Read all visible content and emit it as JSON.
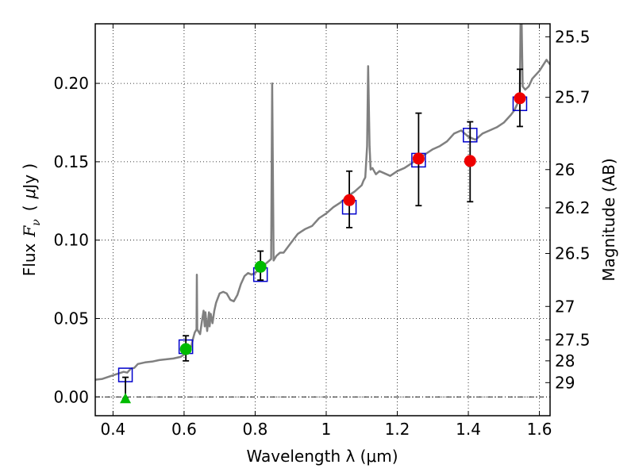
{
  "chart_data": {
    "type": "scatter",
    "xlabel": "Wavelength  λ (μm)",
    "ylabel_text": "Flux",
    "ylabel_math": "F",
    "ylabel_sub": "ν",
    "ylabel_unit_open": "(",
    "ylabel_unit_mu": "μ",
    "ylabel_unit_rest": "Jy )",
    "y2label": "Magnitude (AB)",
    "xlim": [
      0.35,
      1.63
    ],
    "ylim": [
      -0.012,
      0.238
    ],
    "grid": true,
    "x_ticks": [
      0.4,
      0.6,
      0.8,
      1.0,
      1.2,
      1.4,
      1.6
    ],
    "x_tick_labels": [
      "0.4",
      "0.6",
      "0.8",
      "1",
      "1.2",
      "1.4",
      "1.6"
    ],
    "y_ticks": [
      0.0,
      0.05,
      0.1,
      0.15,
      0.2
    ],
    "y_tick_labels": [
      "0.00",
      "0.05",
      "0.10",
      "0.15",
      "0.20"
    ],
    "mag_ticks": [
      {
        "label": "25.5",
        "flux": 0.2297
      },
      {
        "label": "25.7",
        "flux": 0.1911
      },
      {
        "label": "26",
        "flux": 0.145
      },
      {
        "label": "26.2",
        "flux": 0.1206
      },
      {
        "label": "26.5",
        "flux": 0.0915
      },
      {
        "label": "27",
        "flux": 0.0577
      },
      {
        "label": "27.5",
        "flux": 0.0364
      },
      {
        "label": "28",
        "flux": 0.023
      },
      {
        "label": "29",
        "flux": 0.0091
      }
    ],
    "colors": {
      "model": "#808080",
      "green": "#00bb00",
      "red": "#ee0000",
      "box": "#0000cc",
      "errorbar": "#000000"
    },
    "model_spectrum": [
      [
        0.35,
        0.011
      ],
      [
        0.37,
        0.0115
      ],
      [
        0.39,
        0.013
      ],
      [
        0.41,
        0.0145
      ],
      [
        0.43,
        0.016
      ],
      [
        0.44,
        0.0155
      ],
      [
        0.45,
        0.018
      ],
      [
        0.46,
        0.0185
      ],
      [
        0.47,
        0.021
      ],
      [
        0.49,
        0.022
      ],
      [
        0.51,
        0.0225
      ],
      [
        0.53,
        0.0235
      ],
      [
        0.55,
        0.024
      ],
      [
        0.57,
        0.0245
      ],
      [
        0.59,
        0.0255
      ],
      [
        0.6,
        0.027
      ],
      [
        0.61,
        0.03
      ],
      [
        0.62,
        0.032
      ],
      [
        0.625,
        0.037
      ],
      [
        0.63,
        0.041
      ],
      [
        0.635,
        0.043
      ],
      [
        0.636,
        0.078
      ],
      [
        0.637,
        0.043
      ],
      [
        0.645,
        0.04
      ],
      [
        0.65,
        0.048
      ],
      [
        0.655,
        0.055
      ],
      [
        0.658,
        0.045
      ],
      [
        0.66,
        0.054
      ],
      [
        0.665,
        0.042
      ],
      [
        0.67,
        0.054
      ],
      [
        0.672,
        0.045
      ],
      [
        0.675,
        0.053
      ],
      [
        0.68,
        0.047
      ],
      [
        0.685,
        0.055
      ],
      [
        0.69,
        0.06
      ],
      [
        0.695,
        0.063
      ],
      [
        0.7,
        0.066
      ],
      [
        0.71,
        0.067
      ],
      [
        0.72,
        0.066
      ],
      [
        0.73,
        0.062
      ],
      [
        0.74,
        0.061
      ],
      [
        0.75,
        0.065
      ],
      [
        0.76,
        0.072
      ],
      [
        0.77,
        0.077
      ],
      [
        0.78,
        0.079
      ],
      [
        0.79,
        0.078
      ],
      [
        0.8,
        0.079
      ],
      [
        0.81,
        0.081
      ],
      [
        0.82,
        0.084
      ],
      [
        0.83,
        0.085
      ],
      [
        0.84,
        0.087
      ],
      [
        0.845,
        0.088
      ],
      [
        0.848,
        0.2
      ],
      [
        0.852,
        0.087
      ],
      [
        0.86,
        0.09
      ],
      [
        0.87,
        0.092
      ],
      [
        0.88,
        0.092
      ],
      [
        0.9,
        0.098
      ],
      [
        0.92,
        0.104
      ],
      [
        0.94,
        0.107
      ],
      [
        0.96,
        0.109
      ],
      [
        0.98,
        0.114
      ],
      [
        1.0,
        0.117
      ],
      [
        1.02,
        0.121
      ],
      [
        1.04,
        0.124
      ],
      [
        1.06,
        0.128
      ],
      [
        1.08,
        0.131
      ],
      [
        1.1,
        0.135
      ],
      [
        1.105,
        0.138
      ],
      [
        1.11,
        0.14
      ],
      [
        1.115,
        0.16
      ],
      [
        1.118,
        0.211
      ],
      [
        1.122,
        0.16
      ],
      [
        1.125,
        0.145
      ],
      [
        1.13,
        0.146
      ],
      [
        1.14,
        0.142
      ],
      [
        1.15,
        0.144
      ],
      [
        1.16,
        0.143
      ],
      [
        1.17,
        0.142
      ],
      [
        1.18,
        0.141
      ],
      [
        1.2,
        0.144
      ],
      [
        1.22,
        0.146
      ],
      [
        1.24,
        0.149
      ],
      [
        1.26,
        0.152
      ],
      [
        1.28,
        0.155
      ],
      [
        1.3,
        0.158
      ],
      [
        1.32,
        0.16
      ],
      [
        1.34,
        0.163
      ],
      [
        1.36,
        0.168
      ],
      [
        1.38,
        0.17
      ],
      [
        1.4,
        0.166
      ],
      [
        1.42,
        0.164
      ],
      [
        1.44,
        0.168
      ],
      [
        1.46,
        0.17
      ],
      [
        1.48,
        0.172
      ],
      [
        1.5,
        0.175
      ],
      [
        1.52,
        0.18
      ],
      [
        1.53,
        0.183
      ],
      [
        1.54,
        0.188
      ],
      [
        1.545,
        0.192
      ],
      [
        1.547,
        0.238
      ],
      [
        1.55,
        0.238
      ],
      [
        1.553,
        0.198
      ],
      [
        1.56,
        0.196
      ],
      [
        1.57,
        0.198
      ],
      [
        1.58,
        0.203
      ],
      [
        1.6,
        0.208
      ],
      [
        1.62,
        0.215
      ],
      [
        1.63,
        0.212
      ]
    ],
    "model_boxes": [
      [
        0.435,
        0.014
      ],
      [
        0.605,
        0.032
      ],
      [
        0.815,
        0.078
      ],
      [
        1.065,
        0.121
      ],
      [
        1.26,
        0.151
      ],
      [
        1.405,
        0.167
      ],
      [
        1.545,
        0.187
      ]
    ],
    "green_points": [
      {
        "x": 0.605,
        "y": 0.0305,
        "err_low": 0.0075,
        "err_high": 0.0085
      },
      {
        "x": 0.815,
        "y": 0.083,
        "err_low": 0.0085,
        "err_high": 0.01
      }
    ],
    "green_upper_limit": {
      "x": 0.435,
      "y": -0.001,
      "bar_top": 0.0125
    },
    "red_points": [
      {
        "x": 1.065,
        "y": 0.1255,
        "err_low": 0.0175,
        "err_high": 0.0185
      },
      {
        "x": 1.26,
        "y": 0.152,
        "err_low": 0.03,
        "err_high": 0.029
      },
      {
        "x": 1.405,
        "y": 0.1505,
        "err_low": 0.026,
        "err_high": 0.025
      },
      {
        "x": 1.545,
        "y": 0.1905,
        "err_low": 0.018,
        "err_high": 0.0185
      }
    ]
  }
}
